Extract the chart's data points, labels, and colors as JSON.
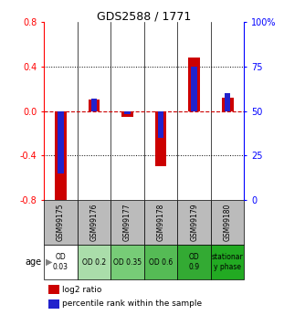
{
  "title": "GDS2588 / 1771",
  "samples": [
    "GSM99175",
    "GSM99176",
    "GSM99177",
    "GSM99178",
    "GSM99179",
    "GSM99180"
  ],
  "log2_ratio": [
    -0.85,
    0.1,
    -0.05,
    -0.5,
    0.48,
    0.12
  ],
  "percentile_rank": [
    15,
    57,
    48,
    35,
    75,
    60
  ],
  "ylim_left": [
    -0.8,
    0.8
  ],
  "ylim_right": [
    0,
    100
  ],
  "yticks_left": [
    -0.8,
    -0.4,
    0.0,
    0.4,
    0.8
  ],
  "yticks_right": [
    0,
    25,
    50,
    75,
    100
  ],
  "ytick_labels_right": [
    "0",
    "25",
    "50",
    "75",
    "100%"
  ],
  "bar_color_red": "#cc0000",
  "bar_color_blue": "#2222cc",
  "zero_line_color": "#cc0000",
  "bg_color": "#ffffff",
  "age_labels": [
    "OD\n0.03",
    "OD 0.2",
    "OD 0.35",
    "OD 0.6",
    "OD\n0.9",
    "stationar\ny phase"
  ],
  "age_bg_colors": [
    "#ffffff",
    "#aaddaa",
    "#77cc77",
    "#55bb55",
    "#33aa33",
    "#22aa22"
  ],
  "sample_bg_color": "#bbbbbb",
  "legend_red_label": "log2 ratio",
  "legend_blue_label": "percentile rank within the sample",
  "red_bar_width": 0.35,
  "blue_bar_width": 0.18
}
